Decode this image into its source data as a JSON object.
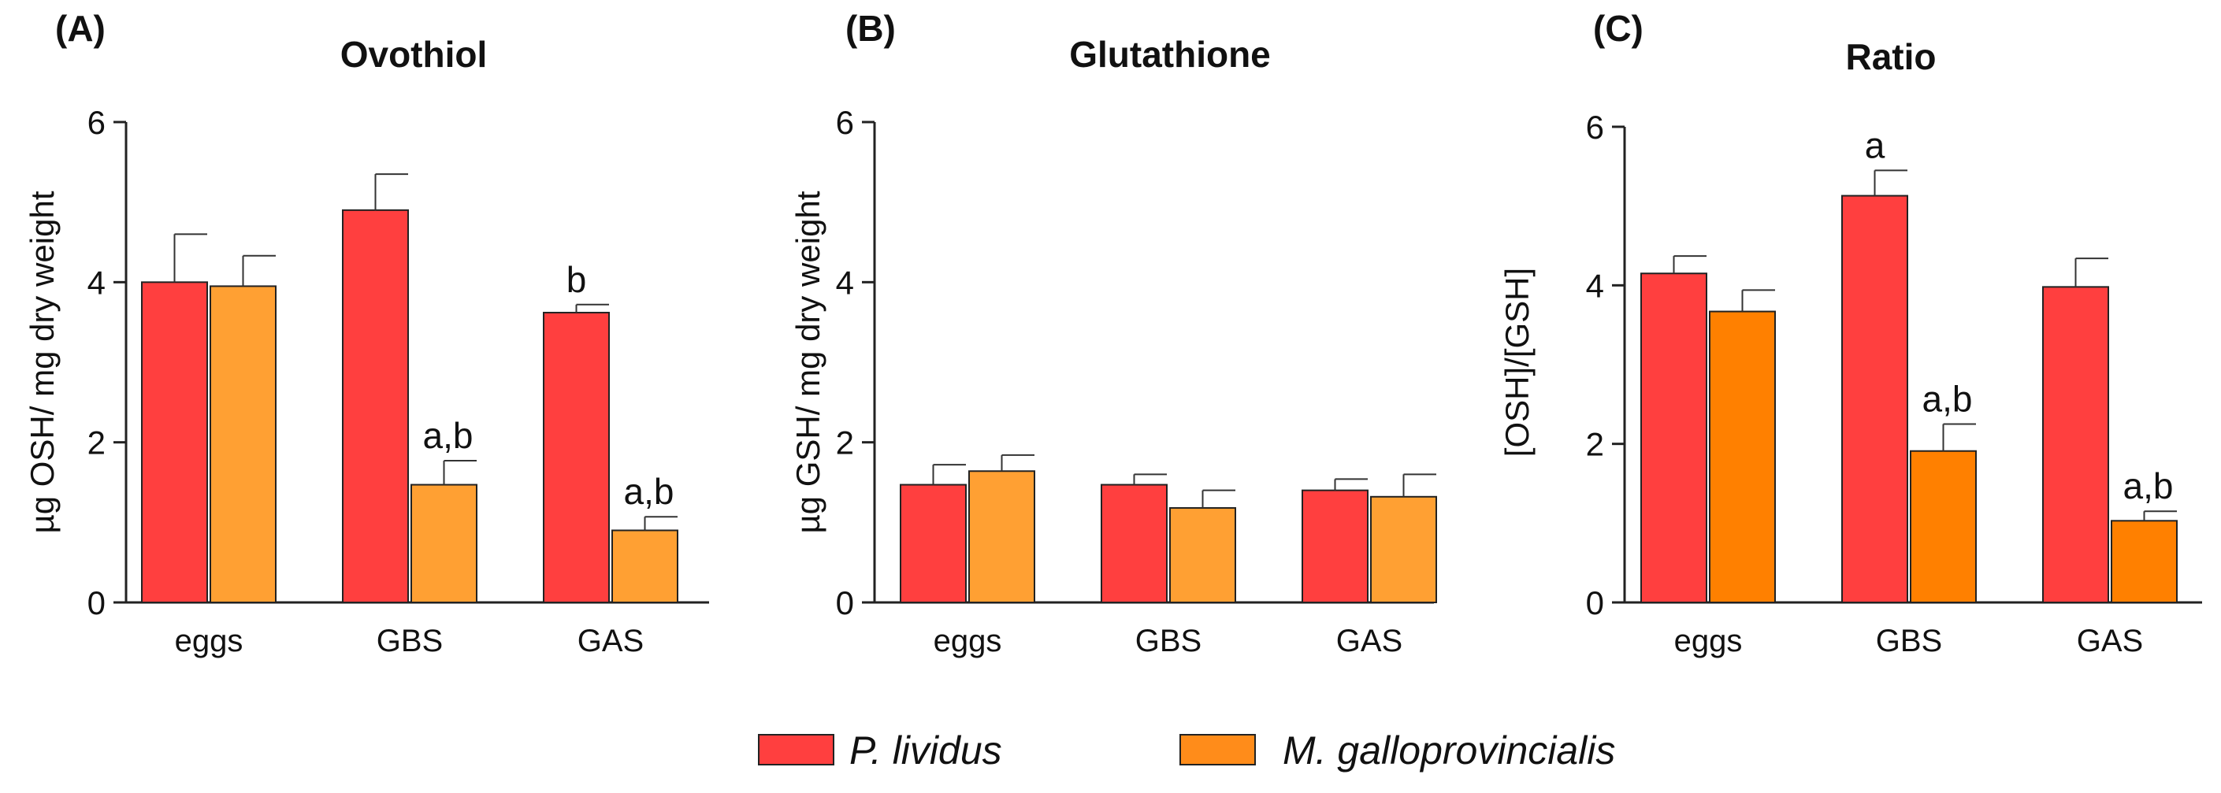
{
  "legend": {
    "series": [
      {
        "name": "P. lividus",
        "color": "#ff3f3f"
      },
      {
        "name": "M. galloprovincialis",
        "color": "#ff8c1a"
      }
    ]
  },
  "chart_data": [
    {
      "type": "bar",
      "panel_label": "(A)",
      "title": "Ovothiol",
      "ylabel": "µg OSH/ mg dry weight",
      "xlabel": "",
      "ylim": [
        0,
        6
      ],
      "yticks": [
        0,
        2,
        4,
        6
      ],
      "categories": [
        "eggs",
        "GBS",
        "GAS"
      ],
      "series": [
        {
          "name": "P. lividus",
          "color": "#ff3f3f",
          "values": [
            4.0,
            4.9,
            3.62
          ],
          "errors": [
            0.6,
            0.45,
            0.1
          ],
          "labels": [
            "",
            "",
            "b"
          ]
        },
        {
          "name": "M. galloprovincialis",
          "color": "#ffa033",
          "values": [
            3.95,
            1.47,
            0.9
          ],
          "errors": [
            0.38,
            0.3,
            0.17
          ],
          "labels": [
            "",
            "a,b",
            "a,b"
          ]
        }
      ]
    },
    {
      "type": "bar",
      "panel_label": "(B)",
      "title": "Glutathione",
      "ylabel": "µg GSH/ mg dry weight",
      "xlabel": "",
      "ylim": [
        0,
        6
      ],
      "yticks": [
        0,
        2,
        4,
        6
      ],
      "categories": [
        "eggs",
        "GBS",
        "GAS"
      ],
      "series": [
        {
          "name": "P. lividus",
          "color": "#ff3f3f",
          "values": [
            1.47,
            1.47,
            1.4
          ],
          "errors": [
            0.25,
            0.13,
            0.14
          ],
          "labels": [
            "",
            "",
            ""
          ]
        },
        {
          "name": "M. galloprovincialis",
          "color": "#ffa033",
          "values": [
            1.64,
            1.18,
            1.32
          ],
          "errors": [
            0.2,
            0.22,
            0.28
          ],
          "labels": [
            "",
            "",
            ""
          ]
        }
      ]
    },
    {
      "type": "bar",
      "panel_label": "(C)",
      "title": "Ratio",
      "ylabel": "[OSH]/[GSH]",
      "xlabel": "",
      "ylim": [
        0,
        6
      ],
      "yticks": [
        0,
        2,
        4,
        6
      ],
      "categories": [
        "eggs",
        "GBS",
        "GAS"
      ],
      "series": [
        {
          "name": "P. lividus",
          "color": "#ff3f3f",
          "values": [
            4.15,
            5.13,
            3.98
          ],
          "errors": [
            0.22,
            0.32,
            0.36
          ],
          "labels": [
            "",
            "a",
            ""
          ]
        },
        {
          "name": "M. galloprovincialis",
          "color": "#ff8000",
          "values": [
            3.67,
            1.91,
            1.03
          ],
          "errors": [
            0.27,
            0.34,
            0.12
          ],
          "labels": [
            "",
            "a,b",
            "a,b"
          ]
        }
      ]
    }
  ]
}
